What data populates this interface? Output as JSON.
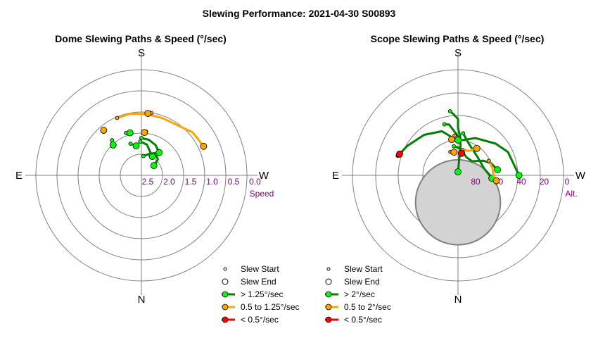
{
  "figure": {
    "title": "Slewing Performance: 2021-04-30 S00893"
  },
  "chart_data": [
    {
      "type": "polar-line",
      "title": "Dome Slewing Paths & Speed (°/sec)",
      "directions": {
        "top": "S",
        "bottom": "N",
        "left": "E",
        "right": "W"
      },
      "radial_axis": {
        "unit_label": "Speed",
        "ticks": [
          "2.5",
          "2.0",
          "1.5",
          "1.0",
          "0.5",
          "0.0"
        ],
        "range": [
          3.0,
          0.0
        ]
      },
      "paths": [
        {
          "category": "mid",
          "points": [
            [
              157,
              1.23
            ],
            [
              170,
              1.22
            ],
            [
              185,
              1.25
            ],
            [
              200,
              1.27
            ],
            [
              215,
              1.25
            ],
            [
              230,
              1.1
            ],
            [
              245,
              1.05
            ]
          ]
        },
        {
          "category": "high",
          "points": [
            [
              180,
              1.94
            ],
            [
              192,
              1.97
            ],
            [
              205,
              2.05
            ],
            [
              218,
              2.18
            ]
          ]
        },
        {
          "category": "high",
          "points": [
            [
              178,
              2.04
            ],
            [
              190,
              2.11
            ],
            [
              210,
              2.38
            ]
          ]
        },
        {
          "category": "high",
          "points": [
            [
              186,
              2.45
            ],
            [
              200,
              2.35
            ],
            [
              212,
              2.25
            ],
            [
              226,
              2.35
            ],
            [
              232,
              2.55
            ]
          ]
        },
        {
          "category": "high",
          "points": [
            [
              161,
              2.05
            ],
            [
              170,
              2.15
            ]
          ]
        },
        {
          "category": "high",
          "points": [
            [
              140,
              1.7
            ],
            [
              137,
              1.82
            ]
          ]
        },
        {
          "category": "mid",
          "points": [
            [
              189,
              1.21
            ],
            [
              186,
              1.23
            ]
          ]
        },
        {
          "category": "mid",
          "points": [
            [
              186,
              1.75
            ],
            [
              184,
              1.78
            ]
          ]
        },
        {
          "category": "mid",
          "points": [
            [
              139,
              1.36
            ],
            [
              140,
              1.33
            ]
          ]
        },
        {
          "category": "high",
          "points": [
            [
              160,
              1.72
            ],
            [
              165,
              1.75
            ]
          ]
        }
      ],
      "legend": {
        "position": "bottom-right",
        "entries": [
          "Slew Start",
          "Slew End",
          "> 1.25°/sec",
          "0.5 to 1.25°/sec",
          "< 0.5°/sec"
        ]
      }
    },
    {
      "type": "polar-line",
      "title": "Scope Slewing Paths & Speed (°/sec)",
      "directions": {
        "top": "S",
        "bottom": "N",
        "left": "E",
        "right": "W"
      },
      "radial_axis": {
        "unit_label": "Alt.",
        "ticks": [
          "80",
          "60",
          "40",
          "20",
          "0"
        ],
        "range": [
          90,
          0
        ]
      },
      "obscured_region": {
        "az": 0,
        "alt": 67,
        "radius_deg": 23
      },
      "paths": [
        {
          "category": "high",
          "points": [
            [
              173,
              35
            ],
            [
              176,
              38
            ],
            [
              180,
              42
            ],
            [
              180,
              50
            ],
            [
              183,
              56
            ],
            [
              185,
              65
            ],
            [
              180,
              87
            ]
          ]
        },
        {
          "category": "high",
          "points": [
            [
              165,
              45
            ],
            [
              170,
              46
            ],
            [
              185,
              60
            ],
            [
              205,
              55
            ],
            [
              230,
              48
            ],
            [
              245,
              43
            ],
            [
              270,
              38
            ]
          ]
        },
        {
          "category": "high",
          "points": [
            [
              108,
              36
            ],
            [
              120,
              40
            ],
            [
              140,
              45
            ],
            [
              160,
              50
            ],
            [
              175,
              59
            ],
            [
              180,
              60
            ]
          ]
        },
        {
          "category": "high",
          "points": [
            [
              187,
              54
            ],
            [
              200,
              62
            ],
            [
              225,
              67
            ],
            [
              255,
              67
            ],
            [
              275,
              61
            ]
          ]
        },
        {
          "category": "high",
          "points": [
            [
              172,
              65
            ],
            [
              185,
              67
            ],
            [
              205,
              73
            ],
            [
              225,
              73
            ],
            [
              240,
              65
            ],
            [
              250,
              60
            ],
            [
              262,
              56
            ]
          ]
        },
        {
          "category": "mid",
          "points": [
            [
              190,
              68
            ],
            [
              205,
              67
            ],
            [
              215,
              62
            ]
          ]
        },
        {
          "category": "mid",
          "points": [
            [
              245,
              61
            ],
            [
              258,
              60
            ],
            [
              268,
              60
            ],
            [
              278,
              57
            ]
          ]
        },
        {
          "category": "mid",
          "points": [
            [
              175,
              56
            ],
            [
              170,
              59
            ]
          ]
        },
        {
          "category": "mid",
          "points": [
            [
              162,
              69
            ],
            [
              170,
              70
            ]
          ]
        },
        {
          "category": "low",
          "points": [
            [
              108,
              36
            ],
            [
              110,
              37
            ]
          ]
        },
        {
          "category": "low",
          "points": [
            [
              192,
              70
            ],
            [
              189,
              71
            ]
          ]
        }
      ],
      "legend": {
        "position": "bottom-right",
        "entries": [
          "Slew Start",
          "Slew End",
          "> 2°/sec",
          "0.5 to 2°/sec",
          "< 0.5°/sec"
        ]
      }
    }
  ],
  "colors": {
    "high": "#008000",
    "high_marker": "#00ff00",
    "mid": "#ffa500",
    "low": "#ff0000",
    "grid": "#808080",
    "radial_label": "#800080"
  }
}
